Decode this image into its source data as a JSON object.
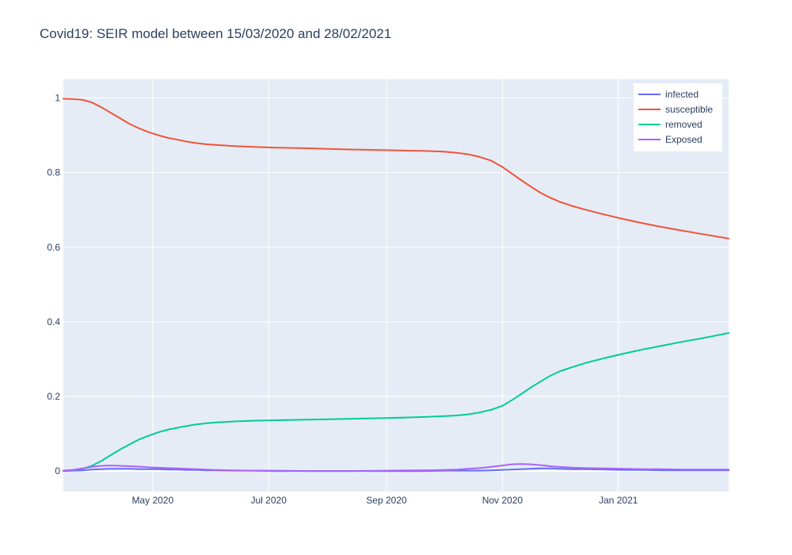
{
  "chart_data": {
    "type": "line",
    "title": "Covid19: SEIR model between 15/03/2020 and 28/02/2021",
    "xlabel": "",
    "ylabel": "",
    "xlim": [
      "2020-03-15",
      "2021-02-28"
    ],
    "ylim": [
      -0.055,
      1.05
    ],
    "grid": true,
    "legend_position": "top-right",
    "x_ticks": [
      {
        "date": "2020-05-01",
        "label": "May 2020"
      },
      {
        "date": "2020-07-01",
        "label": "Jul 2020"
      },
      {
        "date": "2020-09-01",
        "label": "Sep 2020"
      },
      {
        "date": "2020-11-01",
        "label": "Nov 2020"
      },
      {
        "date": "2021-01-01",
        "label": "Jan 2021"
      }
    ],
    "y_ticks": [
      {
        "value": 0,
        "label": "0"
      },
      {
        "value": 0.2,
        "label": "0.2"
      },
      {
        "value": 0.4,
        "label": "0.4"
      },
      {
        "value": 0.6,
        "label": "0.6"
      },
      {
        "value": 0.8,
        "label": "0.8"
      },
      {
        "value": 1,
        "label": "1"
      }
    ],
    "x": [
      "2020-03-15",
      "2020-03-20",
      "2020-03-25",
      "2020-03-30",
      "2020-04-04",
      "2020-04-09",
      "2020-04-14",
      "2020-04-19",
      "2020-04-24",
      "2020-04-29",
      "2020-05-04",
      "2020-05-09",
      "2020-05-14",
      "2020-05-19",
      "2020-05-24",
      "2020-05-29",
      "2020-06-03",
      "2020-06-13",
      "2020-06-23",
      "2020-07-03",
      "2020-07-23",
      "2020-08-12",
      "2020-09-01",
      "2020-09-21",
      "2020-10-01",
      "2020-10-08",
      "2020-10-14",
      "2020-10-20",
      "2020-10-26",
      "2020-11-01",
      "2020-11-06",
      "2020-11-11",
      "2020-11-16",
      "2020-11-21",
      "2020-11-26",
      "2020-12-01",
      "2020-12-08",
      "2020-12-15",
      "2020-12-25",
      "2021-01-04",
      "2021-01-14",
      "2021-01-24",
      "2021-02-03",
      "2021-02-13",
      "2021-02-28"
    ],
    "series": [
      {
        "name": "infected",
        "color": "#636efa",
        "values": [
          0.0,
          0.001,
          0.002,
          0.004,
          0.005,
          0.006,
          0.006,
          0.006,
          0.005,
          0.005,
          0.005,
          0.004,
          0.004,
          0.003,
          0.003,
          0.002,
          0.002,
          0.001,
          0.001,
          0.0,
          0.0,
          0.0,
          0.0,
          0.0,
          0.001,
          0.001,
          0.001,
          0.001,
          0.002,
          0.003,
          0.004,
          0.005,
          0.006,
          0.007,
          0.007,
          0.006,
          0.005,
          0.005,
          0.004,
          0.003,
          0.003,
          0.002,
          0.002,
          0.002,
          0.002
        ]
      },
      {
        "name": "susceptible",
        "color": "#ef553b",
        "values": [
          0.998,
          0.997,
          0.995,
          0.988,
          0.975,
          0.96,
          0.945,
          0.93,
          0.918,
          0.908,
          0.9,
          0.893,
          0.888,
          0.883,
          0.879,
          0.876,
          0.874,
          0.871,
          0.869,
          0.867,
          0.865,
          0.862,
          0.86,
          0.858,
          0.856,
          0.853,
          0.849,
          0.842,
          0.832,
          0.815,
          0.797,
          0.779,
          0.762,
          0.746,
          0.733,
          0.722,
          0.71,
          0.7,
          0.687,
          0.675,
          0.664,
          0.654,
          0.645,
          0.636,
          0.623
        ]
      },
      {
        "name": "removed",
        "color": "#00cc96",
        "values": [
          0.001,
          0.003,
          0.006,
          0.014,
          0.027,
          0.043,
          0.058,
          0.072,
          0.085,
          0.095,
          0.104,
          0.111,
          0.116,
          0.121,
          0.125,
          0.128,
          0.13,
          0.133,
          0.135,
          0.136,
          0.138,
          0.14,
          0.142,
          0.145,
          0.147,
          0.149,
          0.152,
          0.157,
          0.164,
          0.175,
          0.19,
          0.207,
          0.224,
          0.24,
          0.255,
          0.267,
          0.279,
          0.29,
          0.303,
          0.315,
          0.326,
          0.336,
          0.346,
          0.355,
          0.37
        ]
      },
      {
        "name": "Exposed",
        "color": "#ab63fa",
        "values": [
          0.001,
          0.003,
          0.007,
          0.011,
          0.014,
          0.015,
          0.014,
          0.013,
          0.012,
          0.01,
          0.009,
          0.008,
          0.007,
          0.006,
          0.005,
          0.004,
          0.003,
          0.002,
          0.001,
          0.001,
          0.0,
          0.0,
          0.001,
          0.002,
          0.003,
          0.004,
          0.006,
          0.008,
          0.011,
          0.015,
          0.018,
          0.019,
          0.018,
          0.016,
          0.013,
          0.011,
          0.009,
          0.008,
          0.007,
          0.006,
          0.005,
          0.005,
          0.004,
          0.004,
          0.004
        ]
      }
    ]
  }
}
